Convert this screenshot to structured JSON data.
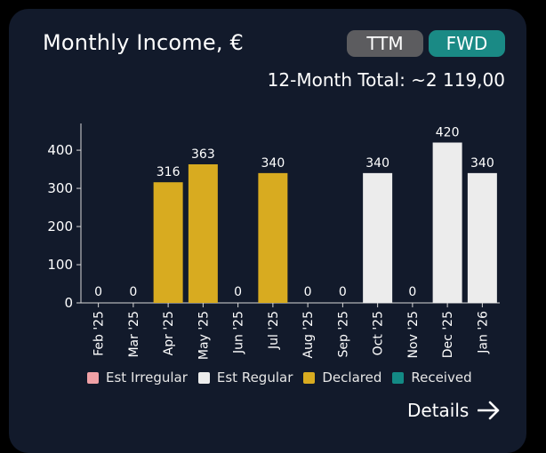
{
  "header": {
    "title": "Monthly Income, €",
    "ttm_label": "TTM",
    "fwd_label": "FWD",
    "total": "12-Month Total: ~2 119,00"
  },
  "chart_data": {
    "type": "bar",
    "categories": [
      "Feb '25",
      "Mar '25",
      "Apr '25",
      "May '25",
      "Jun '25",
      "Jul '25",
      "Aug '25",
      "Sep '25",
      "Oct '25",
      "Nov '25",
      "Dec '25",
      "Jan '26"
    ],
    "values": [
      0,
      0,
      316,
      363,
      0,
      340,
      0,
      0,
      340,
      0,
      420,
      340
    ],
    "bar_status": [
      "",
      "",
      "Declared",
      "Declared",
      "",
      "Declared",
      "",
      "",
      "Est Regular",
      "",
      "Est Regular",
      "Est Regular"
    ],
    "yticks": [
      0,
      100,
      200,
      300,
      400
    ],
    "ylim": [
      0,
      470
    ],
    "legend": [
      {
        "label": "Est Irregular",
        "color": "#f0a1a6"
      },
      {
        "label": "Est Regular",
        "color": "#ececec"
      },
      {
        "label": "Declared",
        "color": "#d8ab20"
      },
      {
        "label": "Received",
        "color": "#138a85"
      }
    ]
  },
  "footer": {
    "details_label": "Details",
    "details_icon": "arrow-right-icon"
  }
}
